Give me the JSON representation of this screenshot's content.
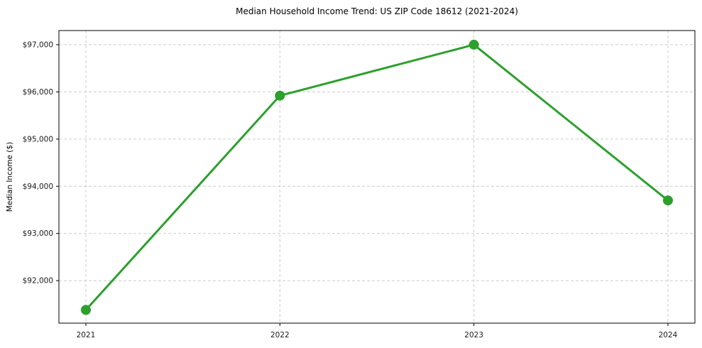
{
  "chart": {
    "title": "Median Household Income Trend: US ZIP Code 18612 (2021-2024)",
    "ylabel": "Median Income ($)"
  },
  "chart_data": {
    "type": "line",
    "title": "Median Household Income Trend: US ZIP Code 18612 (2021-2024)",
    "xlabel": "",
    "ylabel": "Median Income ($)",
    "categories": [
      "2021",
      "2022",
      "2023",
      "2024"
    ],
    "series": [
      {
        "name": "Median Household Income",
        "values": [
          91380,
          95920,
          97000,
          93700
        ]
      }
    ],
    "ylim": [
      91100,
      97300
    ],
    "yticks": [
      {
        "value": 92000,
        "label": "$92,000"
      },
      {
        "value": 93000,
        "label": "$93,000"
      },
      {
        "value": 94000,
        "label": "$94,000"
      },
      {
        "value": 95000,
        "label": "$95,000"
      },
      {
        "value": 96000,
        "label": "$96,000"
      },
      {
        "value": 97000,
        "label": "$97,000"
      }
    ],
    "grid": true,
    "legend_position": "none",
    "line_color": "#2ca02c",
    "marker_color": "#2ca02c",
    "marker_radius": 7,
    "grid_color": "#cccccc",
    "axis_color": "#000000",
    "text_color": "#1a1a1a"
  }
}
